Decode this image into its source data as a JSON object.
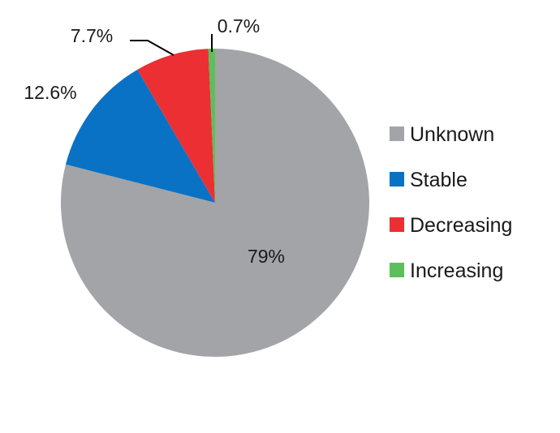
{
  "chart_data": {
    "type": "pie",
    "title": "",
    "categories": [
      "Unknown",
      "Stable",
      "Decreasing",
      "Increasing"
    ],
    "values": [
      79,
      12.6,
      7.7,
      0.7
    ],
    "labels": [
      "79%",
      "12.6%",
      "7.7%",
      "0.7%"
    ],
    "colors": [
      "#a3a4a8",
      "#0a72c4",
      "#ec2f32",
      "#5cbf5c"
    ],
    "start_angle_deg": 0,
    "direction": "clockwise",
    "legend_position": "right"
  }
}
